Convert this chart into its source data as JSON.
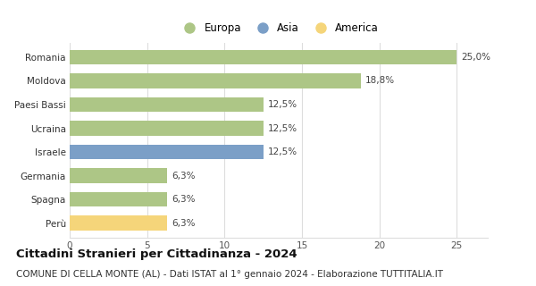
{
  "categories": [
    "Romania",
    "Moldova",
    "Paesi Bassi",
    "Ucraina",
    "Israele",
    "Germania",
    "Spagna",
    "Perù"
  ],
  "values": [
    25.0,
    18.8,
    12.5,
    12.5,
    12.5,
    6.3,
    6.3,
    6.3
  ],
  "labels": [
    "25,0%",
    "18,8%",
    "12,5%",
    "12,5%",
    "12,5%",
    "6,3%",
    "6,3%",
    "6,3%"
  ],
  "continents": [
    "Europa",
    "Europa",
    "Europa",
    "Europa",
    "Asia",
    "Europa",
    "Europa",
    "America"
  ],
  "colors": {
    "Europa": "#adc686",
    "Asia": "#7b9fc7",
    "America": "#f5d57a"
  },
  "legend_items": [
    "Europa",
    "Asia",
    "America"
  ],
  "xlim": [
    0,
    27
  ],
  "xticks": [
    0,
    5,
    10,
    15,
    20,
    25
  ],
  "title": "Cittadini Stranieri per Cittadinanza - 2024",
  "subtitle": "COMUNE DI CELLA MONTE (AL) - Dati ISTAT al 1° gennaio 2024 - Elaborazione TUTTITALIA.IT",
  "title_fontsize": 9.5,
  "subtitle_fontsize": 7.5,
  "bar_height": 0.62,
  "label_fontsize": 7.5,
  "tick_fontsize": 7.5,
  "legend_fontsize": 8.5,
  "background_color": "#ffffff",
  "grid_color": "#dddddd"
}
